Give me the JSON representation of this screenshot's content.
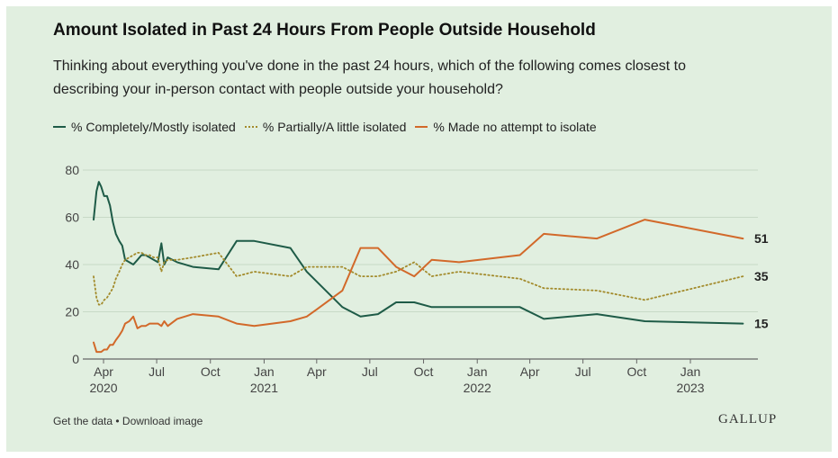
{
  "title": "Amount Isolated in Past 24 Hours From People Outside Household",
  "subtitle": "Thinking about everything you've done in the past 24 hours, which of the following comes closest to describing your in-person contact with people outside your household?",
  "legend": {
    "completely": "% Completely/Mostly isolated",
    "partially": "% Partially/A little isolated",
    "noattempt": "% Made no attempt to isolate"
  },
  "footer": {
    "get_data": "Get the data",
    "separator": " • ",
    "download": "Download image"
  },
  "logo": "GALLUP",
  "colors": {
    "background": "#e1efe0",
    "completely": "#1e5b47",
    "partially": "#a38b2c",
    "noattempt": "#d2692a",
    "gridline": "#c8d9c6"
  },
  "chart_data": {
    "type": "line",
    "ylim": [
      0,
      80
    ],
    "yticks": [
      0,
      20,
      40,
      60,
      80
    ],
    "xlim": [
      "2020-03-15",
      "2023-04-05"
    ],
    "xticks": [
      {
        "date": "2020-04-01",
        "label": "Apr",
        "year": "2020"
      },
      {
        "date": "2020-07-01",
        "label": "Jul",
        "year": ""
      },
      {
        "date": "2020-10-01",
        "label": "Oct",
        "year": ""
      },
      {
        "date": "2021-01-01",
        "label": "Jan",
        "year": "2021"
      },
      {
        "date": "2021-04-01",
        "label": "Apr",
        "year": ""
      },
      {
        "date": "2021-07-01",
        "label": "Jul",
        "year": ""
      },
      {
        "date": "2021-10-01",
        "label": "Oct",
        "year": ""
      },
      {
        "date": "2022-01-01",
        "label": "Jan",
        "year": "2022"
      },
      {
        "date": "2022-04-01",
        "label": "Apr",
        "year": ""
      },
      {
        "date": "2022-07-01",
        "label": "Jul",
        "year": ""
      },
      {
        "date": "2022-10-01",
        "label": "Oct",
        "year": ""
      },
      {
        "date": "2023-01-01",
        "label": "Jan",
        "year": "2023"
      }
    ],
    "series": [
      {
        "key": "completely",
        "name": "% Completely/Mostly isolated",
        "style": "solid",
        "end_label": "15",
        "points": [
          [
            "2020-03-15",
            59
          ],
          [
            "2020-03-20",
            71
          ],
          [
            "2020-03-24",
            75
          ],
          [
            "2020-03-28",
            73
          ],
          [
            "2020-04-02",
            69
          ],
          [
            "2020-04-07",
            69
          ],
          [
            "2020-04-12",
            65
          ],
          [
            "2020-04-17",
            58
          ],
          [
            "2020-04-22",
            53
          ],
          [
            "2020-04-28",
            50
          ],
          [
            "2020-05-03",
            48
          ],
          [
            "2020-05-08",
            42
          ],
          [
            "2020-05-15",
            41
          ],
          [
            "2020-05-22",
            40
          ],
          [
            "2020-05-29",
            42
          ],
          [
            "2020-06-05",
            44
          ],
          [
            "2020-06-12",
            44
          ],
          [
            "2020-06-19",
            43
          ],
          [
            "2020-06-26",
            42
          ],
          [
            "2020-07-03",
            41
          ],
          [
            "2020-07-09",
            49
          ],
          [
            "2020-07-14",
            40
          ],
          [
            "2020-07-20",
            43
          ],
          [
            "2020-08-05",
            41
          ],
          [
            "2020-09-01",
            39
          ],
          [
            "2020-10-15",
            38
          ],
          [
            "2020-11-15",
            50
          ],
          [
            "2020-12-15",
            50
          ],
          [
            "2021-02-15",
            47
          ],
          [
            "2021-03-15",
            37
          ],
          [
            "2021-05-15",
            22
          ],
          [
            "2021-06-15",
            18
          ],
          [
            "2021-07-15",
            19
          ],
          [
            "2021-08-15",
            24
          ],
          [
            "2021-09-15",
            24
          ],
          [
            "2021-10-15",
            22
          ],
          [
            "2022-03-15",
            22
          ],
          [
            "2022-04-25",
            17
          ],
          [
            "2022-07-25",
            19
          ],
          [
            "2022-10-15",
            16
          ],
          [
            "2023-04-01",
            15
          ]
        ]
      },
      {
        "key": "partially",
        "name": "% Partially/A little isolated",
        "style": "dotted",
        "end_label": "35",
        "points": [
          [
            "2020-03-15",
            35
          ],
          [
            "2020-03-20",
            26
          ],
          [
            "2020-03-24",
            23
          ],
          [
            "2020-03-28",
            23
          ],
          [
            "2020-04-02",
            25
          ],
          [
            "2020-04-07",
            26
          ],
          [
            "2020-04-12",
            28
          ],
          [
            "2020-04-17",
            30
          ],
          [
            "2020-04-22",
            34
          ],
          [
            "2020-04-28",
            37
          ],
          [
            "2020-05-03",
            40
          ],
          [
            "2020-05-08",
            42
          ],
          [
            "2020-05-15",
            43
          ],
          [
            "2020-05-22",
            44
          ],
          [
            "2020-05-29",
            45
          ],
          [
            "2020-06-05",
            45
          ],
          [
            "2020-06-12",
            44
          ],
          [
            "2020-06-19",
            44
          ],
          [
            "2020-06-26",
            43
          ],
          [
            "2020-07-03",
            43
          ],
          [
            "2020-07-09",
            37
          ],
          [
            "2020-07-14",
            41
          ],
          [
            "2020-07-20",
            42
          ],
          [
            "2020-08-05",
            42
          ],
          [
            "2020-09-01",
            43
          ],
          [
            "2020-10-15",
            45
          ],
          [
            "2020-11-15",
            35
          ],
          [
            "2020-12-15",
            37
          ],
          [
            "2021-02-15",
            35
          ],
          [
            "2021-03-15",
            39
          ],
          [
            "2021-05-15",
            39
          ],
          [
            "2021-06-15",
            35
          ],
          [
            "2021-07-15",
            35
          ],
          [
            "2021-08-15",
            37
          ],
          [
            "2021-09-15",
            41
          ],
          [
            "2021-10-15",
            35
          ],
          [
            "2021-12-01",
            37
          ],
          [
            "2022-03-15",
            34
          ],
          [
            "2022-04-25",
            30
          ],
          [
            "2022-07-25",
            29
          ],
          [
            "2022-10-15",
            25
          ],
          [
            "2023-04-01",
            35
          ]
        ]
      },
      {
        "key": "noattempt",
        "name": "% Made no attempt to isolate",
        "style": "solid",
        "end_label": "51",
        "points": [
          [
            "2020-03-15",
            7
          ],
          [
            "2020-03-20",
            3
          ],
          [
            "2020-03-24",
            3
          ],
          [
            "2020-03-28",
            3
          ],
          [
            "2020-04-02",
            4
          ],
          [
            "2020-04-07",
            4
          ],
          [
            "2020-04-12",
            6
          ],
          [
            "2020-04-17",
            6
          ],
          [
            "2020-04-22",
            8
          ],
          [
            "2020-04-28",
            10
          ],
          [
            "2020-05-03",
            12
          ],
          [
            "2020-05-08",
            15
          ],
          [
            "2020-05-15",
            16
          ],
          [
            "2020-05-22",
            18
          ],
          [
            "2020-05-29",
            13
          ],
          [
            "2020-06-05",
            14
          ],
          [
            "2020-06-12",
            14
          ],
          [
            "2020-06-19",
            15
          ],
          [
            "2020-06-26",
            15
          ],
          [
            "2020-07-03",
            15
          ],
          [
            "2020-07-09",
            14
          ],
          [
            "2020-07-14",
            16
          ],
          [
            "2020-07-20",
            14
          ],
          [
            "2020-08-05",
            17
          ],
          [
            "2020-09-01",
            19
          ],
          [
            "2020-10-15",
            18
          ],
          [
            "2020-11-15",
            15
          ],
          [
            "2020-12-15",
            14
          ],
          [
            "2021-02-15",
            16
          ],
          [
            "2021-03-15",
            18
          ],
          [
            "2021-04-01",
            21
          ],
          [
            "2021-05-15",
            29
          ],
          [
            "2021-06-15",
            47
          ],
          [
            "2021-07-15",
            47
          ],
          [
            "2021-08-15",
            39
          ],
          [
            "2021-09-15",
            35
          ],
          [
            "2021-10-15",
            42
          ],
          [
            "2021-12-01",
            41
          ],
          [
            "2022-03-15",
            44
          ],
          [
            "2022-04-25",
            53
          ],
          [
            "2022-07-25",
            51
          ],
          [
            "2022-10-15",
            59
          ],
          [
            "2023-04-01",
            51
          ]
        ]
      }
    ]
  }
}
